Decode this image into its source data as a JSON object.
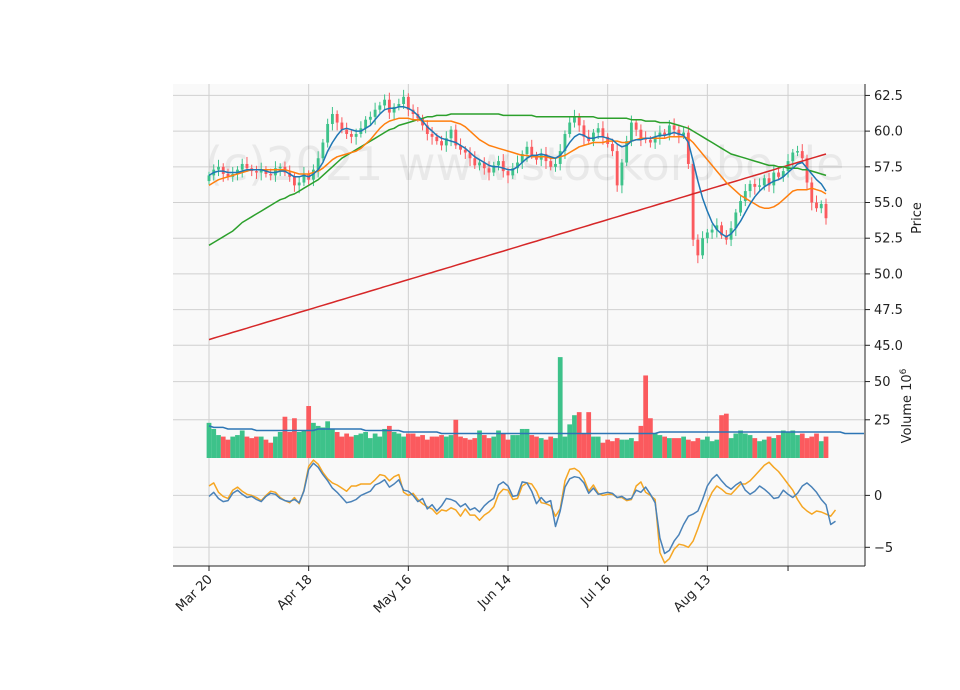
{
  "chart_data": {
    "type": "candlestick",
    "watermark": "(c)2021 www.stockorobo.de",
    "x_ticks": [
      "Mar 20",
      "Apr 18",
      "May 16",
      "Jun 14",
      "Jul 16",
      "Aug 13"
    ],
    "price_panel": {
      "ylabel": "Price",
      "yticks": [
        "62.5",
        "60.0",
        "57.5",
        "55.0",
        "52.5",
        "50.0",
        "47.5",
        "45.0"
      ],
      "ylim": [
        44.6,
        63.3
      ],
      "close": [
        56.9,
        57.3,
        57.5,
        57.0,
        56.8,
        57.0,
        57.3,
        57.7,
        57.4,
        57.2,
        57.1,
        57.3,
        57.0,
        56.9,
        57.4,
        57.5,
        57.1,
        56.8,
        56.2,
        56.4,
        57.0,
        56.6,
        57.3,
        58.1,
        59.2,
        60.5,
        61.2,
        60.6,
        60.1,
        59.8,
        59.6,
        59.8,
        60.2,
        60.8,
        61.0,
        61.5,
        61.8,
        62.2,
        61.3,
        61.7,
        61.9,
        62.4,
        61.5,
        61.2,
        60.9,
        60.4,
        59.8,
        59.6,
        59.3,
        59.0,
        59.5,
        60.1,
        59.0,
        58.7,
        58.5,
        58.1,
        57.6,
        57.8,
        57.4,
        57.1,
        57.6,
        57.9,
        57.2,
        56.9,
        57.4,
        57.8,
        58.4,
        58.9,
        58.3,
        58.0,
        58.4,
        57.9,
        57.5,
        57.7,
        58.6,
        59.8,
        60.6,
        61.0,
        60.4,
        59.6,
        59.3,
        59.9,
        60.2,
        59.6,
        59.1,
        58.6,
        56.2,
        57.8,
        59.3,
        60.6,
        60.1,
        59.5,
        59.4,
        59.2,
        59.6,
        59.9,
        59.7,
        60.4,
        60.1,
        59.7,
        59.9,
        57.7,
        52.4,
        51.3,
        52.5,
        52.9,
        53.1,
        53.4,
        52.7,
        52.4,
        53.2,
        54.3,
        55.1,
        55.8,
        56.3,
        56.1,
        56.2,
        56.7,
        56.2,
        57.1,
        56.8,
        57.2,
        57.9,
        58.5,
        58.6,
        58.1,
        56.4,
        55.0,
        54.6,
        54.9,
        53.9
      ],
      "ma_short": [
        56.9,
        57.1,
        57.2,
        57.2,
        57.1,
        57.1,
        57.1,
        57.2,
        57.3,
        57.3,
        57.3,
        57.3,
        57.2,
        57.1,
        57.1,
        57.2,
        57.2,
        57.0,
        56.8,
        56.8,
        56.9,
        56.8,
        57.0,
        57.3,
        57.8,
        58.6,
        59.2,
        59.7,
        60.1,
        60.2,
        60.1,
        60.0,
        60.0,
        60.2,
        60.4,
        60.8,
        61.2,
        61.5,
        61.6,
        61.6,
        61.7,
        61.7,
        61.6,
        61.4,
        61.1,
        60.7,
        60.3,
        60.0,
        59.7,
        59.5,
        59.4,
        59.3,
        59.2,
        59.0,
        58.8,
        58.5,
        58.2,
        58.0,
        57.8,
        57.6,
        57.5,
        57.5,
        57.4,
        57.3,
        57.3,
        57.5,
        57.8,
        58.1,
        58.3,
        58.3,
        58.4,
        58.3,
        58.2,
        58.1,
        58.3,
        58.7,
        59.2,
        59.6,
        59.8,
        59.7,
        59.5,
        59.5,
        59.6,
        59.6,
        59.5,
        59.4,
        59.1,
        58.9,
        59.0,
        59.3,
        59.4,
        59.4,
        59.5,
        59.5,
        59.6,
        59.7,
        59.7,
        59.8,
        59.9,
        59.8,
        59.7,
        59.2,
        57.9,
        56.5,
        55.3,
        54.4,
        53.6,
        53.1,
        52.8,
        52.6,
        52.8,
        53.2,
        53.7,
        54.3,
        54.9,
        55.4,
        55.8,
        56.1,
        56.3,
        56.5,
        56.6,
        56.8,
        57.1,
        57.4,
        57.7,
        57.8,
        57.4,
        57.0,
        56.6,
        56.3,
        55.8
      ],
      "ma_mid": [
        56.2,
        56.4,
        56.6,
        56.7,
        56.8,
        56.9,
        57.0,
        57.1,
        57.2,
        57.3,
        57.3,
        57.3,
        57.3,
        57.3,
        57.3,
        57.3,
        57.3,
        57.2,
        57.1,
        57.0,
        57.0,
        57.0,
        57.1,
        57.2,
        57.4,
        57.7,
        58.0,
        58.2,
        58.3,
        58.4,
        58.5,
        58.6,
        58.8,
        59.1,
        59.4,
        59.8,
        60.2,
        60.5,
        60.7,
        60.8,
        60.9,
        60.9,
        60.9,
        60.8,
        60.8,
        60.7,
        60.7,
        60.7,
        60.7,
        60.7,
        60.7,
        60.7,
        60.6,
        60.5,
        60.3,
        60.0,
        59.7,
        59.4,
        59.2,
        59.0,
        58.9,
        58.8,
        58.7,
        58.6,
        58.5,
        58.4,
        58.3,
        58.3,
        58.2,
        58.2,
        58.2,
        58.2,
        58.1,
        58.1,
        58.2,
        58.3,
        58.5,
        58.7,
        58.9,
        59.0,
        59.1,
        59.2,
        59.2,
        59.2,
        59.3,
        59.3,
        59.3,
        59.2,
        59.2,
        59.3,
        59.4,
        59.5,
        59.5,
        59.5,
        59.5,
        59.5,
        59.5,
        59.6,
        59.6,
        59.6,
        59.6,
        59.5,
        59.2,
        58.8,
        58.4,
        58.0,
        57.6,
        57.2,
        56.8,
        56.4,
        56.1,
        55.8,
        55.5,
        55.3,
        55.1,
        54.9,
        54.7,
        54.6,
        54.6,
        54.7,
        54.9,
        55.2,
        55.5,
        55.8,
        55.9,
        55.9,
        55.9,
        56.0,
        55.9,
        55.8,
        55.6
      ],
      "ma_long": [
        52.0,
        52.2,
        52.4,
        52.6,
        52.8,
        53.0,
        53.3,
        53.6,
        53.8,
        54.0,
        54.2,
        54.4,
        54.6,
        54.8,
        55.0,
        55.2,
        55.3,
        55.5,
        55.6,
        55.8,
        56.0,
        56.2,
        56.4,
        56.6,
        56.9,
        57.2,
        57.5,
        57.8,
        58.1,
        58.3,
        58.5,
        58.7,
        58.9,
        59.1,
        59.3,
        59.5,
        59.7,
        59.9,
        60.1,
        60.2,
        60.4,
        60.5,
        60.6,
        60.7,
        60.8,
        60.9,
        61.0,
        61.0,
        61.1,
        61.1,
        61.1,
        61.2,
        61.2,
        61.2,
        61.2,
        61.2,
        61.2,
        61.2,
        61.2,
        61.2,
        61.2,
        61.2,
        61.1,
        61.1,
        61.1,
        61.1,
        61.1,
        61.1,
        61.1,
        61.0,
        61.0,
        61.0,
        61.0,
        61.0,
        61.0,
        61.0,
        61.0,
        61.0,
        61.0,
        61.0,
        61.0,
        61.0,
        60.9,
        60.9,
        60.9,
        60.9,
        60.9,
        60.9,
        60.9,
        60.8,
        60.8,
        60.8,
        60.7,
        60.7,
        60.7,
        60.6,
        60.6,
        60.6,
        60.5,
        60.4,
        60.3,
        60.2,
        60.0,
        59.8,
        59.6,
        59.4,
        59.2,
        59.0,
        58.8,
        58.6,
        58.4,
        58.3,
        58.2,
        58.1,
        58.0,
        57.9,
        57.8,
        57.7,
        57.6,
        57.6,
        57.5,
        57.5,
        57.4,
        57.4,
        57.4,
        57.3,
        57.3,
        57.2,
        57.1,
        57.0,
        56.9
      ],
      "ma_trend": [
        45.4,
        45.5,
        45.6,
        45.7,
        45.8,
        45.9,
        46.0,
        46.1,
        46.2,
        46.3,
        46.4,
        46.5,
        46.6,
        46.7,
        46.8,
        46.9,
        47.0,
        47.1,
        47.2,
        47.3,
        47.4,
        47.5,
        47.6,
        47.7,
        47.8,
        47.9,
        48.0,
        48.1,
        48.2,
        48.3,
        48.4,
        48.5,
        48.6,
        48.7,
        48.8,
        48.9,
        49.0,
        49.1,
        49.2,
        49.3,
        49.4,
        49.5,
        49.6,
        49.7,
        49.8,
        49.9,
        50.0,
        50.1,
        50.2,
        50.3,
        50.4,
        50.5,
        50.6,
        50.7,
        50.8,
        50.9,
        51.0,
        51.1,
        51.2,
        51.3,
        51.4,
        51.5,
        51.6,
        51.7,
        51.8,
        51.9,
        52.0,
        52.1,
        52.2,
        52.3,
        52.4,
        52.5,
        52.6,
        52.7,
        52.8,
        52.9,
        53.0,
        53.1,
        53.2,
        53.3,
        53.4,
        53.5,
        53.6,
        53.7,
        53.8,
        53.9,
        54.0,
        54.1,
        54.2,
        54.3,
        54.4,
        54.5,
        54.6,
        54.7,
        54.8,
        54.9,
        55.0,
        55.1,
        55.2,
        55.3,
        55.4,
        55.5,
        55.6,
        55.7,
        55.8,
        55.9,
        56.0,
        56.1,
        56.2,
        56.3,
        56.4,
        56.5,
        56.6,
        56.7,
        56.8,
        56.9,
        57.0,
        57.1,
        57.2,
        57.3,
        57.4,
        57.5,
        57.6,
        57.7,
        57.8,
        57.9,
        58.0,
        58.1,
        58.2,
        58.3,
        58.4
      ]
    },
    "volume_panel": {
      "ylabel": "Volume  10",
      "ylabel_exponent": "6",
      "yticks": [
        "50",
        "25"
      ],
      "ylim": [
        0,
        70
      ],
      "volume": [
        23,
        19,
        15,
        14,
        12,
        14,
        15,
        18,
        14,
        13,
        14,
        14,
        12,
        10,
        14,
        17,
        27,
        17,
        26,
        17,
        18,
        34,
        23,
        21,
        20,
        24,
        19,
        17,
        14,
        16,
        14,
        15,
        16,
        17,
        13,
        16,
        14,
        19,
        21,
        17,
        16,
        14,
        16,
        16,
        14,
        15,
        12,
        14,
        14,
        15,
        14,
        15,
        25,
        14,
        13,
        12,
        13,
        18,
        15,
        13,
        14,
        18,
        16,
        12,
        15,
        15,
        19,
        19,
        15,
        14,
        13,
        12,
        14,
        13,
        66,
        14,
        22,
        28,
        30,
        16,
        30,
        14,
        14,
        10,
        12,
        11,
        13,
        12,
        12,
        13,
        11,
        21,
        54,
        26,
        16,
        15,
        14,
        13,
        13,
        13,
        14,
        12,
        11,
        13,
        12,
        14,
        11,
        12,
        28,
        29,
        13,
        16,
        18,
        16,
        15,
        13,
        11,
        12,
        14,
        13,
        15,
        18,
        17,
        18,
        15,
        16,
        13,
        14,
        16,
        11,
        14,
        18,
        20,
        17,
        14,
        15,
        20,
        17,
        25
      ],
      "volume_ma": [
        21,
        20,
        20,
        20,
        19,
        19,
        19,
        19,
        19,
        19,
        18,
        18,
        18,
        18,
        18,
        18,
        18,
        18,
        18,
        18,
        18,
        18,
        18,
        19,
        19,
        19,
        19,
        19,
        19,
        19,
        19,
        19,
        19,
        18,
        18,
        18,
        18,
        18,
        18,
        18,
        18,
        17,
        17,
        17,
        17,
        17,
        17,
        17,
        17,
        16,
        16,
        16,
        16,
        16,
        16,
        16,
        16,
        16,
        16,
        16,
        16,
        16,
        16,
        16,
        16,
        16,
        16,
        16,
        16,
        16,
        16,
        16,
        16,
        16,
        16,
        16,
        16,
        16,
        16,
        16,
        16,
        16,
        16,
        16,
        16,
        16,
        16,
        16,
        16,
        16,
        16,
        16,
        16,
        16,
        16,
        17,
        17,
        17,
        17,
        17,
        17,
        17,
        17,
        17,
        17,
        17,
        17,
        17,
        17,
        17,
        17,
        17,
        17,
        17,
        17,
        17,
        17,
        17,
        17,
        17,
        17,
        17,
        17,
        17,
        17,
        17,
        17,
        17,
        17,
        17,
        17,
        17,
        17,
        17,
        16,
        16,
        16,
        16,
        16
      ]
    },
    "oscillator_panel": {
      "yticks": [
        "0",
        "−5"
      ],
      "ylim": [
        -6.8,
        3.6
      ],
      "macd": [
        -0.1,
        0.3,
        -0.3,
        -0.6,
        -0.5,
        0.2,
        0.5,
        0.1,
        -0.2,
        -0.1,
        -0.4,
        -0.6,
        -0.1,
        0.2,
        0.1,
        -0.3,
        -0.5,
        -0.6,
        -0.4,
        -0.7,
        0.4,
        2.5,
        3.1,
        2.7,
        2.0,
        1.4,
        0.7,
        0.3,
        -0.2,
        -0.7,
        -0.6,
        -0.4,
        0.0,
        0.2,
        0.4,
        1.0,
        1.2,
        1.5,
        0.8,
        1.1,
        1.5,
        0.5,
        0.4,
        0.0,
        -0.6,
        -0.3,
        -1.3,
        -0.9,
        -1.5,
        -1.0,
        -0.3,
        -0.4,
        -0.6,
        -1.1,
        -0.8,
        -1.4,
        -1.2,
        -1.6,
        -1.0,
        -0.6,
        -0.3,
        1.0,
        1.3,
        0.9,
        -0.1,
        0.0,
        1.3,
        1.2,
        0.4,
        -0.8,
        -0.2,
        -0.7,
        -0.5,
        -3.0,
        -1.5,
        0.8,
        1.6,
        1.8,
        1.7,
        1.2,
        0.2,
        0.7,
        0.1,
        0.2,
        0.3,
        0.2,
        -0.2,
        -0.1,
        -0.4,
        -0.3,
        0.5,
        0.3,
        0.8,
        0.1,
        -0.7,
        -4.1,
        -5.6,
        -5.3,
        -4.4,
        -3.8,
        -2.8,
        -2.0,
        -1.8,
        -1.5,
        -0.4,
        0.9,
        1.6,
        2.0,
        1.4,
        0.9,
        0.6,
        1.0,
        1.3,
        0.5,
        0.1,
        0.4,
        0.9,
        0.6,
        0.2,
        -0.3,
        -0.2,
        0.5,
        0.1,
        -0.2,
        0.2,
        0.9,
        1.2,
        0.8,
        0.3,
        -0.4,
        -0.9,
        -2.8,
        -2.5
      ],
      "signal": [
        0.9,
        1.2,
        0.3,
        -0.1,
        -0.3,
        0.5,
        0.8,
        0.4,
        0.1,
        0.0,
        -0.2,
        -0.5,
        0.0,
        0.4,
        0.3,
        -0.2,
        -0.5,
        -0.7,
        -0.2,
        -0.8,
        0.5,
        2.8,
        3.4,
        3.0,
        2.2,
        1.6,
        1.2,
        1.0,
        0.7,
        0.4,
        0.9,
        0.9,
        1.1,
        1.1,
        1.1,
        1.5,
        2.0,
        1.9,
        1.4,
        1.8,
        2.0,
        0.3,
        0.0,
        0.2,
        -0.4,
        -0.8,
        -1.1,
        -1.3,
        -1.8,
        -1.4,
        -1.5,
        -1.2,
        -1.4,
        -2.0,
        -1.3,
        -1.9,
        -1.9,
        -2.4,
        -1.9,
        -1.6,
        -1.1,
        0.1,
        0.6,
        0.5,
        -0.4,
        -0.3,
        0.9,
        1.2,
        1.1,
        0.4,
        -0.7,
        -0.8,
        -1.0,
        -2.0,
        -1.3,
        1.4,
        2.5,
        2.6,
        2.3,
        1.6,
        0.4,
        1.0,
        0.2,
        0.0,
        0.1,
        0.1,
        -0.2,
        -0.2,
        -0.5,
        -0.4,
        0.9,
        1.3,
        0.3,
        0.0,
        -0.4,
        -5.5,
        -6.5,
        -6.1,
        -5.2,
        -4.7,
        -4.8,
        -5.0,
        -4.4,
        -3.2,
        -1.9,
        -0.7,
        0.3,
        0.9,
        0.6,
        0.2,
        0.1,
        0.6,
        1.1,
        1.1,
        1.4,
        1.9,
        2.4,
        2.9,
        3.2,
        2.7,
        2.3,
        1.7,
        1.1,
        0.5,
        -0.4,
        -1.1,
        -1.5,
        -1.8,
        -1.5,
        -1.6,
        -1.8,
        -2.0,
        -1.4
      ]
    },
    "colors": {
      "up": "#3dc28a",
      "down": "#fb5a5e",
      "ma_short": "#1f77b4",
      "ma_mid": "#ff7f0e",
      "ma_long": "#2ca02c",
      "ma_trend": "#d62728",
      "volume_ma": "#2c75b5",
      "macd": "#4a82b8",
      "signal": "#f5a623",
      "panel_bg": "#f9f9f9",
      "grid": "#d0d0d0"
    }
  }
}
